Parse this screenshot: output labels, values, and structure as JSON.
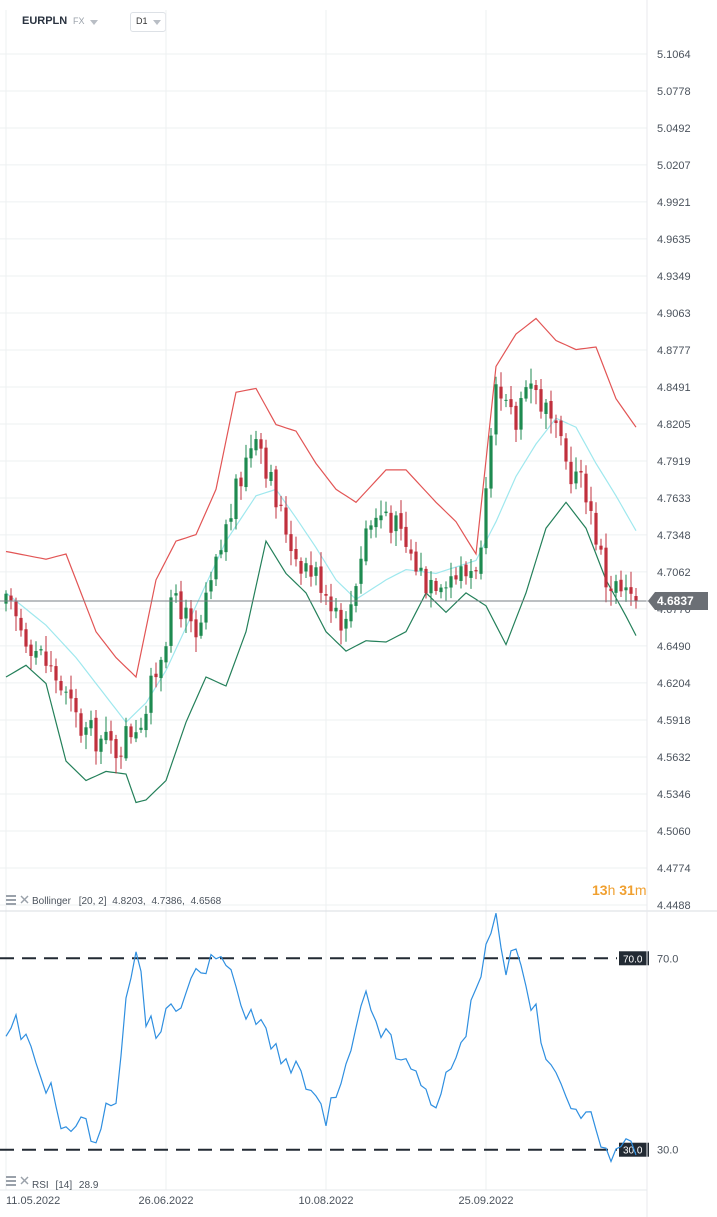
{
  "toolbar": {
    "symbol": "EURPLN",
    "market": "FX",
    "timeframe": "D1",
    "market_dropdown_icon": "chevron-down-icon",
    "timeframe_dropdown_icon": "chevron-down-icon"
  },
  "colors": {
    "bull": "#1e8a50",
    "bear": "#c0303d",
    "bb_upper": "#e25555",
    "bb_middle": "#9fe8ee",
    "bb_lower": "#24805a",
    "rsi": "#2f8fe0",
    "price_tag": "#6b6f75",
    "countdown": "#f0a030"
  },
  "countdown": {
    "hours": "13",
    "h_unit": "h",
    "minutes": "31",
    "m_unit": "m"
  },
  "bollinger_legend": {
    "label": "Bollinger",
    "params": "[20,  2]",
    "upper": "4.8203,",
    "middle": "4.7386,",
    "lower": "4.6568"
  },
  "rsi_legend": {
    "label": "RSI",
    "params": "[14]",
    "value": "28.9"
  },
  "chart_data": [
    {
      "type": "candlestick",
      "ylim": [
        4.4488,
        5.1064
      ],
      "y_ticks": [
        "5.1064",
        "5.0778",
        "5.0492",
        "5.0207",
        "4.9921",
        "4.9635",
        "4.9349",
        "4.9063",
        "4.8777",
        "4.8491",
        "4.8205",
        "4.7919",
        "4.7633",
        "4.7348",
        "4.7062",
        "4.6776",
        "4.6490",
        "4.6204",
        "4.5918",
        "4.5632",
        "4.5346",
        "4.5060",
        "4.4774",
        "4.4488"
      ],
      "x_ticks": [
        "11.05.2022",
        "26.06.2022",
        "10.08.2022",
        "25.09.2022"
      ],
      "x_tick_index": [
        0,
        32,
        64,
        96
      ],
      "last_price": "4.6837",
      "last_price_value": 4.6837,
      "key_closes": [
        [
          0,
          4.68
        ],
        [
          10,
          4.625
        ],
        [
          15,
          4.585
        ],
        [
          22,
          4.57
        ],
        [
          28,
          4.6
        ],
        [
          34,
          4.69
        ],
        [
          38,
          4.65
        ],
        [
          44,
          4.74
        ],
        [
          50,
          4.82
        ],
        [
          54,
          4.76
        ],
        [
          58,
          4.72
        ],
        [
          63,
          4.7
        ],
        [
          68,
          4.665
        ],
        [
          72,
          4.74
        ],
        [
          76,
          4.755
        ],
        [
          80,
          4.725
        ],
        [
          84,
          4.7
        ],
        [
          88,
          4.705
        ],
        [
          92,
          4.705
        ],
        [
          95,
          4.72
        ],
        [
          98,
          4.84
        ],
        [
          102,
          4.82
        ],
        [
          104,
          4.86
        ],
        [
          108,
          4.83
        ],
        [
          112,
          4.79
        ],
        [
          116,
          4.77
        ],
        [
          120,
          4.7
        ],
        [
          124,
          4.688
        ],
        [
          126,
          4.684
        ]
      ],
      "bollinger_upper_pts": [
        [
          0,
          4.722
        ],
        [
          8,
          4.716
        ],
        [
          12,
          4.72
        ],
        [
          18,
          4.66
        ],
        [
          22,
          4.64
        ],
        [
          26,
          4.625
        ],
        [
          30,
          4.7
        ],
        [
          34,
          4.73
        ],
        [
          38,
          4.735
        ],
        [
          42,
          4.77
        ],
        [
          46,
          4.845
        ],
        [
          50,
          4.848
        ],
        [
          54,
          4.82
        ],
        [
          58,
          4.815
        ],
        [
          62,
          4.79
        ],
        [
          66,
          4.77
        ],
        [
          70,
          4.76
        ],
        [
          76,
          4.785
        ],
        [
          80,
          4.785
        ],
        [
          86,
          4.76
        ],
        [
          90,
          4.745
        ],
        [
          94,
          4.72
        ],
        [
          98,
          4.865
        ],
        [
          102,
          4.89
        ],
        [
          106,
          4.902
        ],
        [
          110,
          4.885
        ],
        [
          114,
          4.878
        ],
        [
          118,
          4.88
        ],
        [
          122,
          4.84
        ],
        [
          126,
          4.818
        ]
      ],
      "bollinger_middle_pts": [
        [
          0,
          4.69
        ],
        [
          8,
          4.665
        ],
        [
          14,
          4.64
        ],
        [
          20,
          4.61
        ],
        [
          24,
          4.59
        ],
        [
          28,
          4.605
        ],
        [
          32,
          4.63
        ],
        [
          38,
          4.68
        ],
        [
          44,
          4.73
        ],
        [
          50,
          4.765
        ],
        [
          54,
          4.77
        ],
        [
          58,
          4.748
        ],
        [
          62,
          4.725
        ],
        [
          66,
          4.7
        ],
        [
          70,
          4.685
        ],
        [
          76,
          4.7
        ],
        [
          80,
          4.708
        ],
        [
          86,
          4.705
        ],
        [
          90,
          4.71
        ],
        [
          94,
          4.715
        ],
        [
          98,
          4.745
        ],
        [
          102,
          4.78
        ],
        [
          106,
          4.805
        ],
        [
          110,
          4.825
        ],
        [
          114,
          4.818
        ],
        [
          118,
          4.79
        ],
        [
          122,
          4.765
        ],
        [
          126,
          4.738
        ]
      ],
      "bollinger_lower_pts": [
        [
          0,
          4.625
        ],
        [
          4,
          4.634
        ],
        [
          8,
          4.62
        ],
        [
          12,
          4.56
        ],
        [
          16,
          4.545
        ],
        [
          20,
          4.552
        ],
        [
          24,
          4.55
        ],
        [
          26,
          4.528
        ],
        [
          28,
          4.53
        ],
        [
          32,
          4.545
        ],
        [
          36,
          4.59
        ],
        [
          40,
          4.625
        ],
        [
          44,
          4.618
        ],
        [
          48,
          4.66
        ],
        [
          52,
          4.73
        ],
        [
          56,
          4.705
        ],
        [
          60,
          4.69
        ],
        [
          64,
          4.66
        ],
        [
          68,
          4.645
        ],
        [
          72,
          4.653
        ],
        [
          76,
          4.652
        ],
        [
          80,
          4.66
        ],
        [
          84,
          4.69
        ],
        [
          88,
          4.675
        ],
        [
          92,
          4.69
        ],
        [
          96,
          4.68
        ],
        [
          100,
          4.65
        ],
        [
          104,
          4.69
        ],
        [
          108,
          4.74
        ],
        [
          112,
          4.76
        ],
        [
          116,
          4.74
        ],
        [
          120,
          4.7
        ],
        [
          124,
          4.672
        ],
        [
          126,
          4.657
        ]
      ]
    },
    {
      "type": "line",
      "name": "RSI",
      "ylim": [
        22,
        78
      ],
      "levels": [
        {
          "value": 70,
          "label": "70.0"
        },
        {
          "value": 30,
          "label": "30.0"
        }
      ],
      "y_ticks": [
        "70.0",
        "30.0"
      ],
      "values_pts": [
        [
          0,
          52
        ],
        [
          2,
          56
        ],
        [
          6,
          48
        ],
        [
          10,
          40
        ],
        [
          12,
          33
        ],
        [
          14,
          36
        ],
        [
          18,
          33
        ],
        [
          22,
          42
        ],
        [
          24,
          60
        ],
        [
          26,
          72
        ],
        [
          28,
          58
        ],
        [
          30,
          55
        ],
        [
          34,
          60
        ],
        [
          38,
          66
        ],
        [
          42,
          72
        ],
        [
          44,
          68
        ],
        [
          48,
          58
        ],
        [
          52,
          55
        ],
        [
          56,
          48
        ],
        [
          60,
          44
        ],
        [
          64,
          36
        ],
        [
          68,
          46
        ],
        [
          72,
          62
        ],
        [
          74,
          57
        ],
        [
          78,
          50
        ],
        [
          82,
          45
        ],
        [
          86,
          40
        ],
        [
          90,
          48
        ],
        [
          94,
          63
        ],
        [
          96,
          74
        ],
        [
          98,
          78
        ],
        [
          100,
          68
        ],
        [
          102,
          72
        ],
        [
          104,
          64
        ],
        [
          106,
          58
        ],
        [
          108,
          48
        ],
        [
          112,
          42
        ],
        [
          114,
          40
        ],
        [
          116,
          37
        ],
        [
          118,
          34
        ],
        [
          120,
          31
        ],
        [
          122,
          29
        ],
        [
          124,
          30
        ],
        [
          126,
          28.9
        ]
      ]
    }
  ]
}
